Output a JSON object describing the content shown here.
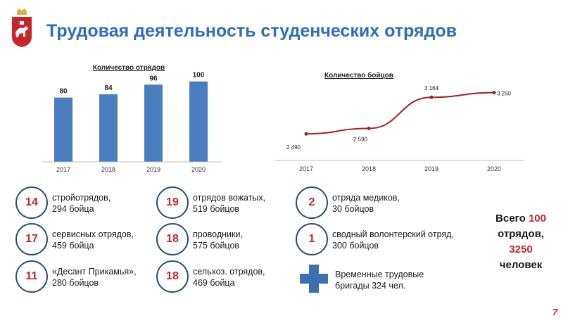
{
  "title": "Трудовая деятельность студенческих отрядов",
  "page_number": "7",
  "colors": {
    "accent": "#2e6fb8",
    "bar": "#4a7ebf",
    "line": "#a32020",
    "number": "#c0282d",
    "circle_border": "#2f4f6f"
  },
  "chart_data": [
    {
      "type": "bar",
      "title": "Количество отрядов",
      "categories": [
        "2017",
        "2018",
        "2019",
        "2020"
      ],
      "values": [
        80,
        84,
        96,
        100
      ],
      "data_labels": [
        "80",
        "84",
        "96",
        "100"
      ],
      "ylim": [
        0,
        105
      ],
      "grid": false
    },
    {
      "type": "line",
      "title": "Количество бойцов",
      "categories": [
        "2017",
        "2018",
        "2019",
        "2020"
      ],
      "values": [
        2490,
        2590,
        3164,
        3250
      ],
      "data_labels": [
        "2 490",
        "2 590",
        "3 164",
        "3 250"
      ],
      "ylim": [
        2000,
        3400
      ],
      "grid": false
    }
  ],
  "stats": [
    {
      "number": "14",
      "line1": "стройотрядов,",
      "line2": "294 бойца"
    },
    {
      "number": "17",
      "line1": "сервисных отрядов,",
      "line2": "459 бойца"
    },
    {
      "number": "11",
      "line1": "«Десант Прикамья»,",
      "line2": "280 бойцов"
    },
    {
      "number": "19",
      "line1": "отрядов вожатых,",
      "line2": "519 бойцов"
    },
    {
      "number": "18",
      "line1": "проводники,",
      "line2": "575 бойцов"
    },
    {
      "number": "18",
      "line1": "сельхоз. отрядов,",
      "line2": "469 бойца"
    },
    {
      "number": "2",
      "line1": "отряда медиков,",
      "line2": "30 бойцов"
    },
    {
      "number": "1",
      "line1": "сводный волонтерский отряд,",
      "line2": "300 бойцов"
    }
  ],
  "temp_brigades": {
    "icon": "plus-cross-icon",
    "line1": "Временные трудовые",
    "line2": "бригады 324 чел."
  },
  "total": {
    "prefix": "Всего",
    "units": "100",
    "line2": "отрядов,",
    "fighters": "3250",
    "line4": "человек"
  }
}
